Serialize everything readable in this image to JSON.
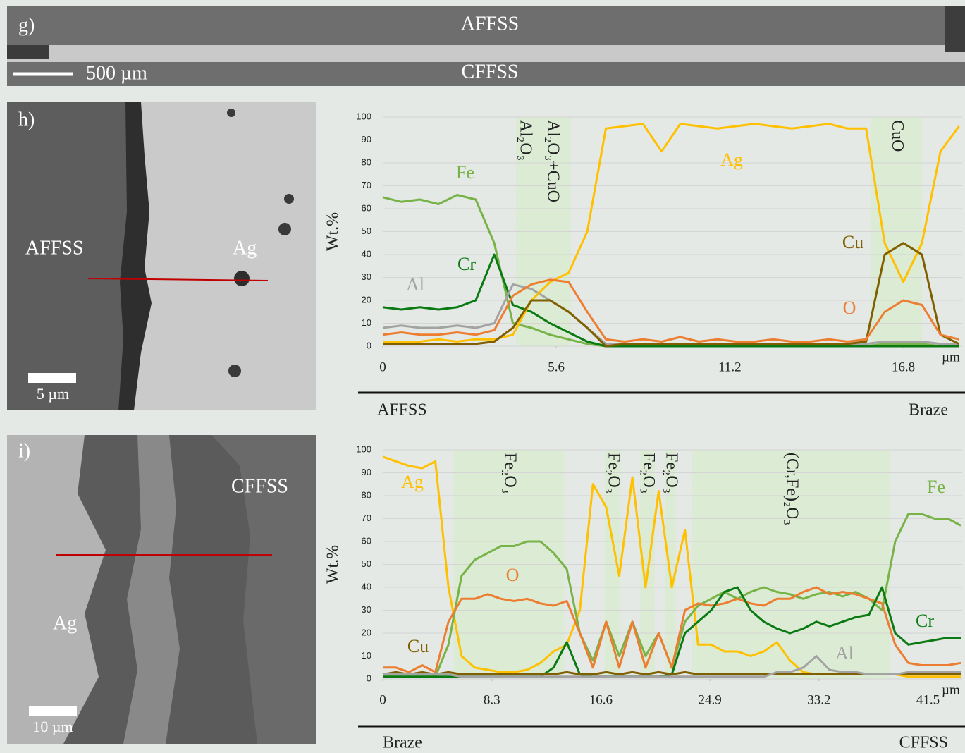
{
  "panels": {
    "g": {
      "label": "g)",
      "top": "AFFSS",
      "bottom": "CFFSS",
      "scale": "500 µm"
    },
    "h": {
      "label": "h)",
      "left": "AFFSS",
      "right": "Ag",
      "scale": "5 µm"
    },
    "i": {
      "label": "i)",
      "right": "CFFSS",
      "left": "Ag",
      "scale": "10 µm"
    }
  },
  "chart_data": [
    {
      "type": "line",
      "y_label": "Wt.%",
      "x_label": "µm",
      "left_end": "AFFSS",
      "right_end": "Braze",
      "xlim": [
        0,
        18.7
      ],
      "ylim": [
        0,
        100
      ],
      "xticks": [
        0,
        5.6,
        11.2,
        16.8
      ],
      "yticks": [
        0,
        10,
        20,
        30,
        40,
        50,
        60,
        70,
        80,
        90,
        100
      ],
      "grid": true,
      "regions": [
        {
          "label": "Al₂O₃",
          "start": 4.3,
          "end": 4.85
        },
        {
          "label": "Al₂O₃+CuO",
          "start": 4.85,
          "end": 6.07
        },
        {
          "label": "CuO",
          "start": 15.75,
          "end": 17.4
        }
      ],
      "x": [
        0,
        0.6,
        1.2,
        1.8,
        2.4,
        3.0,
        3.6,
        4.2,
        4.8,
        5.4,
        6.0,
        6.6,
        7.2,
        7.8,
        8.4,
        9.0,
        9.6,
        10.2,
        10.8,
        11.4,
        12.0,
        12.6,
        13.2,
        13.8,
        14.4,
        15.0,
        15.6,
        16.2,
        16.8,
        17.4,
        18.0,
        18.6
      ],
      "series": [
        {
          "name": "Fe",
          "color": "#77b347",
          "values": [
            65,
            63,
            64,
            62,
            66,
            64,
            45,
            10,
            8,
            5,
            3,
            1,
            0,
            0,
            0,
            0,
            0,
            0,
            0,
            0,
            0,
            0,
            0,
            0,
            0,
            0,
            0,
            1,
            1,
            1,
            0,
            0
          ]
        },
        {
          "name": "Cr",
          "color": "#0b7a12",
          "values": [
            17,
            16,
            17,
            16,
            17,
            20,
            40,
            18,
            15,
            10,
            6,
            2,
            0,
            0,
            0,
            0,
            0,
            0,
            0,
            0,
            0,
            0,
            0,
            0,
            0,
            0,
            0,
            0,
            0,
            0,
            0,
            0
          ]
        },
        {
          "name": "Al",
          "color": "#a3a3a3",
          "values": [
            8,
            9,
            8,
            8,
            9,
            8,
            10,
            27,
            25,
            20,
            15,
            8,
            1,
            1,
            1,
            1,
            1,
            1,
            1,
            1,
            1,
            1,
            1,
            1,
            1,
            1,
            1,
            2,
            2,
            2,
            1,
            1
          ]
        },
        {
          "name": "Ag",
          "color": "#ffc000",
          "values": [
            2,
            2,
            2,
            3,
            2,
            3,
            3,
            5,
            20,
            28,
            32,
            50,
            95,
            96,
            97,
            85,
            97,
            96,
            95,
            96,
            97,
            96,
            95,
            96,
            97,
            95,
            95,
            45,
            28,
            45,
            85,
            96
          ]
        },
        {
          "name": "Cu",
          "color": "#7f5f00",
          "values": [
            1,
            1,
            1,
            1,
            1,
            1,
            2,
            8,
            20,
            20,
            15,
            8,
            0,
            1,
            1,
            1,
            1,
            1,
            1,
            1,
            1,
            1,
            1,
            1,
            1,
            1,
            2,
            40,
            45,
            40,
            5,
            1
          ]
        },
        {
          "name": "O",
          "color": "#ed7d31",
          "values": [
            5,
            6,
            5,
            5,
            6,
            5,
            7,
            22,
            27,
            29,
            28,
            15,
            3,
            2,
            3,
            2,
            4,
            2,
            3,
            2,
            2,
            3,
            2,
            2,
            3,
            2,
            3,
            15,
            20,
            18,
            5,
            3
          ]
        }
      ]
    },
    {
      "type": "line",
      "y_label": "Wt.%",
      "x_label": "µm",
      "left_end": "Braze",
      "right_end": "CFFSS",
      "xlim": [
        0,
        44.1
      ],
      "ylim": [
        0,
        100
      ],
      "xticks": [
        0,
        8.3,
        16.6,
        24.9,
        33.2,
        41.5
      ],
      "yticks": [
        0,
        10,
        20,
        30,
        40,
        50,
        60,
        70,
        80,
        90,
        100
      ],
      "grid": true,
      "regions": [
        {
          "label": "Fe₂O₃",
          "start": 5.4,
          "end": 13.8
        },
        {
          "label": "Fe₂O₃",
          "start": 16.9,
          "end": 18.1
        },
        {
          "label": "Fe₂O₃",
          "start": 19.6,
          "end": 20.7
        },
        {
          "label": "Fe₂O₃",
          "start": 21.5,
          "end": 22.3
        },
        {
          "label": "(Cr,Fe)₂O₃",
          "start": 23.5,
          "end": 38.6
        }
      ],
      "x": [
        0,
        1,
        2,
        3,
        4,
        5,
        6,
        7,
        8,
        9,
        10,
        11,
        12,
        13,
        14,
        15,
        16,
        17,
        18,
        19,
        20,
        21,
        22,
        23,
        24,
        25,
        26,
        27,
        28,
        29,
        30,
        31,
        32,
        33,
        34,
        35,
        36,
        37,
        38,
        39,
        40,
        41,
        42,
        43,
        44
      ],
      "series": [
        {
          "name": "Ag",
          "color": "#ffc000",
          "values": [
            97,
            95,
            93,
            92,
            95,
            40,
            10,
            5,
            4,
            3,
            3,
            4,
            7,
            12,
            15,
            30,
            85,
            75,
            45,
            88,
            40,
            82,
            40,
            65,
            15,
            15,
            12,
            12,
            10,
            12,
            16,
            8,
            3,
            2,
            2,
            2,
            2,
            2,
            2,
            2,
            1,
            1,
            1,
            1,
            1
          ]
        },
        {
          "name": "Fe",
          "color": "#77b347",
          "values": [
            1,
            1,
            1,
            1,
            1,
            15,
            45,
            52,
            55,
            58,
            58,
            60,
            60,
            55,
            48,
            20,
            8,
            25,
            10,
            25,
            10,
            20,
            5,
            25,
            32,
            35,
            38,
            35,
            38,
            40,
            38,
            37,
            35,
            37,
            38,
            36,
            38,
            35,
            30,
            60,
            72,
            72,
            70,
            70,
            67
          ]
        },
        {
          "name": "O",
          "color": "#ed7d31",
          "values": [
            5,
            5,
            3,
            6,
            3,
            25,
            35,
            35,
            37,
            35,
            34,
            35,
            33,
            32,
            34,
            20,
            5,
            25,
            5,
            25,
            5,
            20,
            5,
            30,
            33,
            32,
            33,
            35,
            33,
            32,
            35,
            35,
            38,
            40,
            37,
            38,
            37,
            35,
            33,
            15,
            7,
            6,
            6,
            6,
            7
          ]
        },
        {
          "name": "Cr",
          "color": "#0b7a12",
          "values": [
            1,
            1,
            1,
            1,
            1,
            1,
            1,
            1,
            1,
            1,
            1,
            1,
            1,
            5,
            16,
            2,
            1,
            1,
            1,
            1,
            1,
            1,
            2,
            20,
            25,
            30,
            38,
            40,
            30,
            25,
            22,
            20,
            22,
            25,
            23,
            25,
            27,
            28,
            40,
            20,
            15,
            16,
            17,
            18,
            18
          ]
        },
        {
          "name": "Cu",
          "color": "#7f5f00",
          "values": [
            2,
            3,
            2,
            3,
            2,
            3,
            2,
            2,
            2,
            2,
            2,
            2,
            2,
            2,
            3,
            2,
            2,
            3,
            2,
            3,
            2,
            3,
            2,
            3,
            2,
            2,
            2,
            2,
            2,
            2,
            2,
            2,
            2,
            2,
            2,
            2,
            2,
            2,
            2,
            2,
            2,
            2,
            2,
            2,
            2
          ]
        },
        {
          "name": "Al",
          "color": "#a3a3a3",
          "values": [
            2,
            2,
            2,
            2,
            2,
            2,
            1,
            1,
            1,
            1,
            1,
            1,
            1,
            1,
            1,
            1,
            1,
            1,
            1,
            1,
            1,
            1,
            1,
            1,
            1,
            1,
            1,
            1,
            1,
            1,
            3,
            3,
            5,
            10,
            4,
            3,
            3,
            2,
            2,
            2,
            3,
            3,
            3,
            3,
            3
          ]
        }
      ]
    }
  ]
}
